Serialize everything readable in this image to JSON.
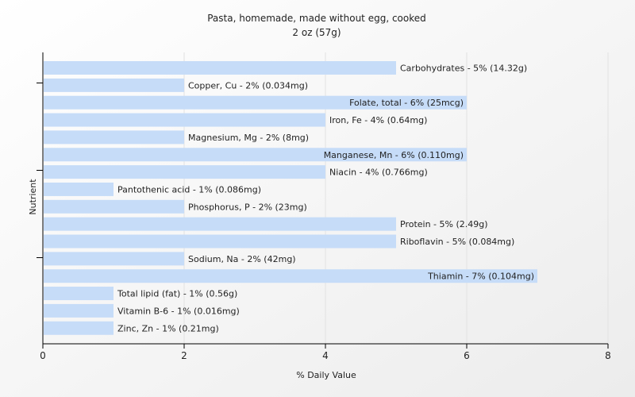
{
  "chart_data": {
    "type": "bar",
    "orientation": "horizontal",
    "title": "Pasta, homemade, made without egg, cooked",
    "subtitle": "2 oz (57g)",
    "xlabel": "% Daily Value",
    "ylabel": "Nutrient",
    "xlim": [
      0,
      8
    ],
    "xticks": [
      "0",
      "2",
      "4",
      "6",
      "8"
    ],
    "grid": true,
    "bar_color": "#c6dcf8",
    "background_gradient": [
      "#ffffff",
      "#ececec"
    ],
    "categories": [
      "Carbohydrates",
      "Copper, Cu",
      "Folate, total",
      "Iron, Fe",
      "Magnesium, Mg",
      "Manganese, Mn",
      "Niacin",
      "Pantothenic acid",
      "Phosphorus, P",
      "Protein",
      "Riboflavin",
      "Sodium, Na",
      "Thiamin",
      "Total lipid (fat)",
      "Vitamin B-6",
      "Zinc, Zn"
    ],
    "values": [
      5,
      2,
      6,
      4,
      2,
      6,
      4,
      1,
      2,
      5,
      5,
      2,
      7,
      1,
      1,
      1
    ],
    "labels": [
      "Carbohydrates - 5% (14.32g)",
      "Copper, Cu - 2% (0.034mg)",
      "Folate, total - 6% (25mcg)",
      "Iron, Fe - 4% (0.64mg)",
      "Magnesium, Mg - 2% (8mg)",
      "Manganese, Mn - 6% (0.110mg)",
      "Niacin - 4% (0.766mg)",
      "Pantothenic acid - 1% (0.086mg)",
      "Phosphorus, P - 2% (23mg)",
      "Protein - 5% (2.49g)",
      "Riboflavin - 5% (0.084mg)",
      "Sodium, Na - 2% (42mg)",
      "Thiamin - 7% (0.104mg)",
      "Total lipid (fat) - 1% (0.56g)",
      "Vitamin B-6 - 1% (0.016mg)",
      "Zinc, Zn - 1% (0.21mg)"
    ]
  }
}
